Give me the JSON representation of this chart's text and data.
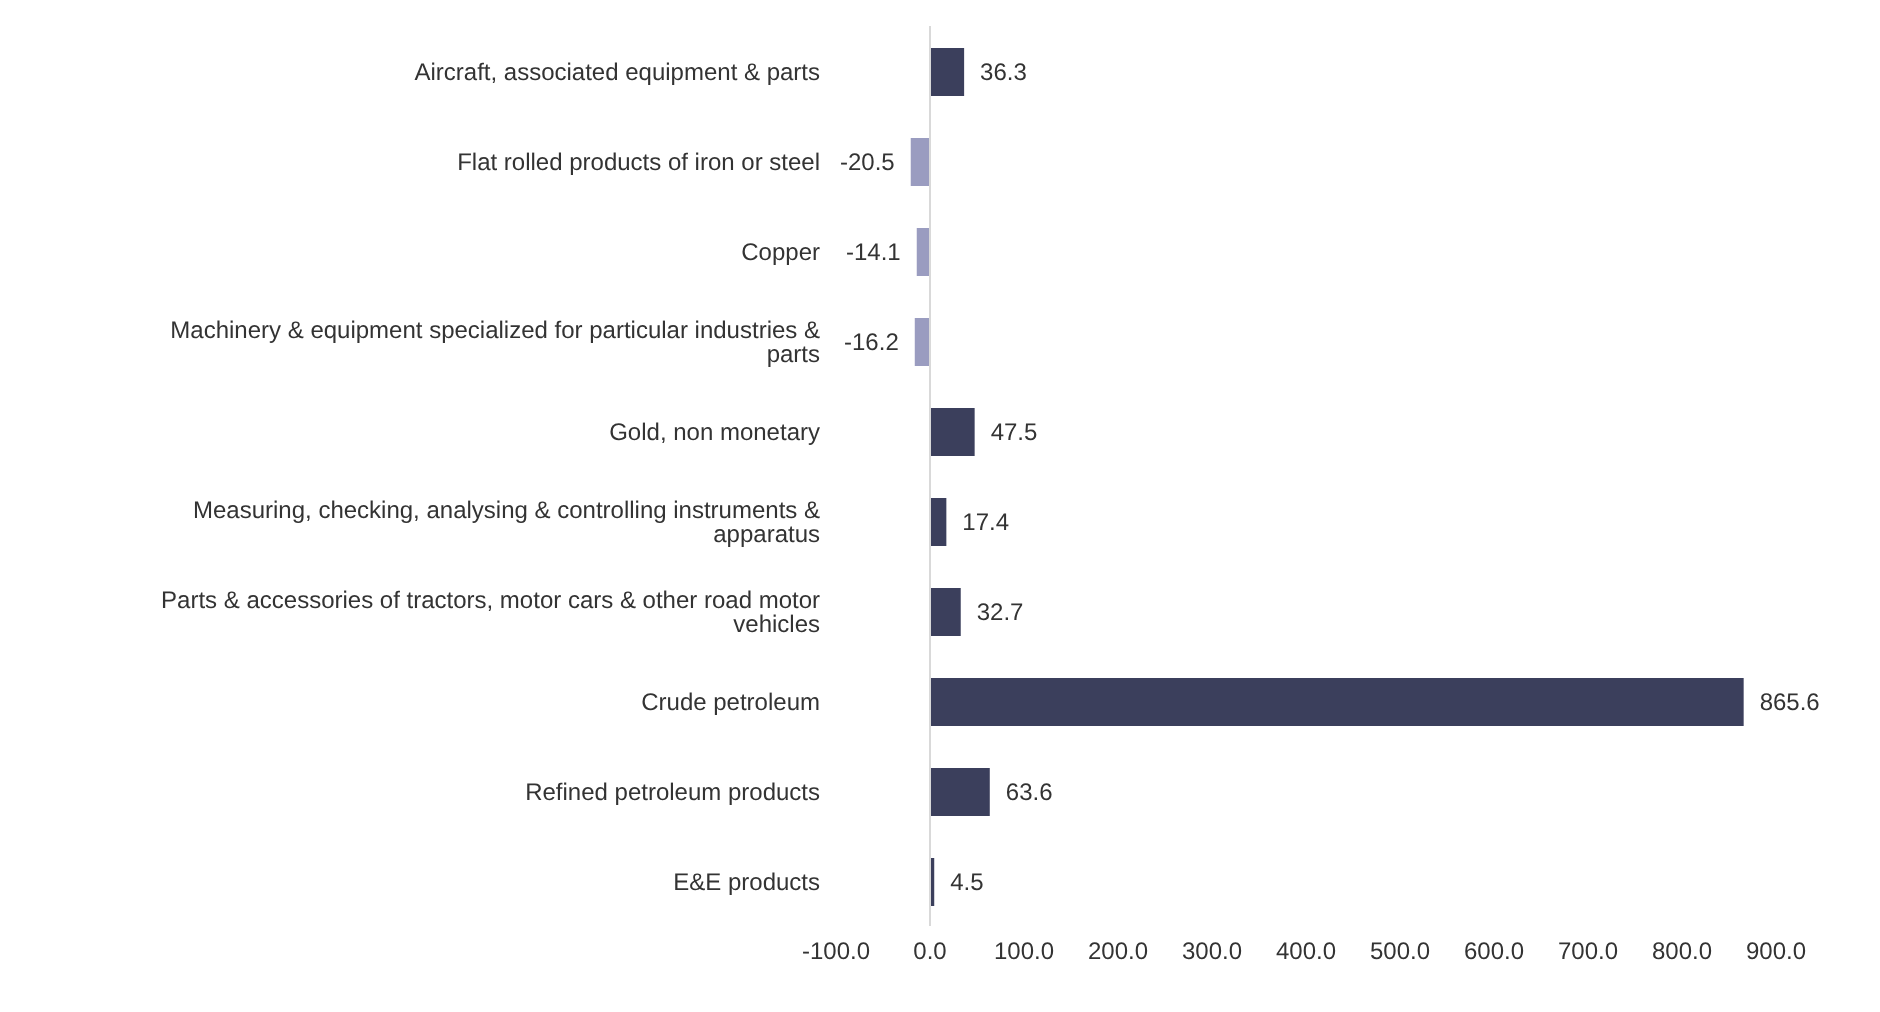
{
  "chart_data": {
    "type": "bar",
    "orientation": "horizontal",
    "data_labels": true,
    "categories": [
      "Aircraft, associated equipment & parts",
      "Flat rolled products of iron or steel",
      "Copper",
      "Machinery & equipment specialized for particular industries & parts",
      "Gold, non monetary",
      "Measuring, checking, analysing & controlling instruments & apparatus",
      "Parts & accessories of tractors, motor cars & other road motor vehicles",
      "Crude petroleum",
      "Refined petroleum products",
      "E&E products"
    ],
    "values": [
      36.3,
      -20.5,
      -14.1,
      -16.2,
      47.5,
      17.4,
      32.7,
      865.6,
      63.6,
      4.5
    ],
    "colors": [
      "#3b3f5c",
      "#9a9cc0",
      "#9a9cc0",
      "#9a9cc0",
      "#3b3f5c",
      "#3b3f5c",
      "#3b3f5c",
      "#3b3f5c",
      "#3b3f5c",
      "#3b3f5c"
    ],
    "xlim": [
      -100,
      900
    ],
    "xticks": [
      {
        "value": -100,
        "label": "-100.0"
      },
      {
        "value": 0,
        "label": "0.0"
      },
      {
        "value": 100,
        "label": "100.0"
      },
      {
        "value": 200,
        "label": "200.0"
      },
      {
        "value": 300,
        "label": "300.0"
      },
      {
        "value": 400,
        "label": "400.0"
      },
      {
        "value": 500,
        "label": "500.0"
      },
      {
        "value": 600,
        "label": "600.0"
      },
      {
        "value": 700,
        "label": "700.0"
      },
      {
        "value": 800,
        "label": "800.0"
      },
      {
        "value": 900,
        "label": "900.0"
      }
    ],
    "grid": false,
    "legend": false,
    "ref_lines": [
      {
        "axis": "x",
        "value": 0,
        "color": "#d9d9d9"
      }
    ]
  }
}
